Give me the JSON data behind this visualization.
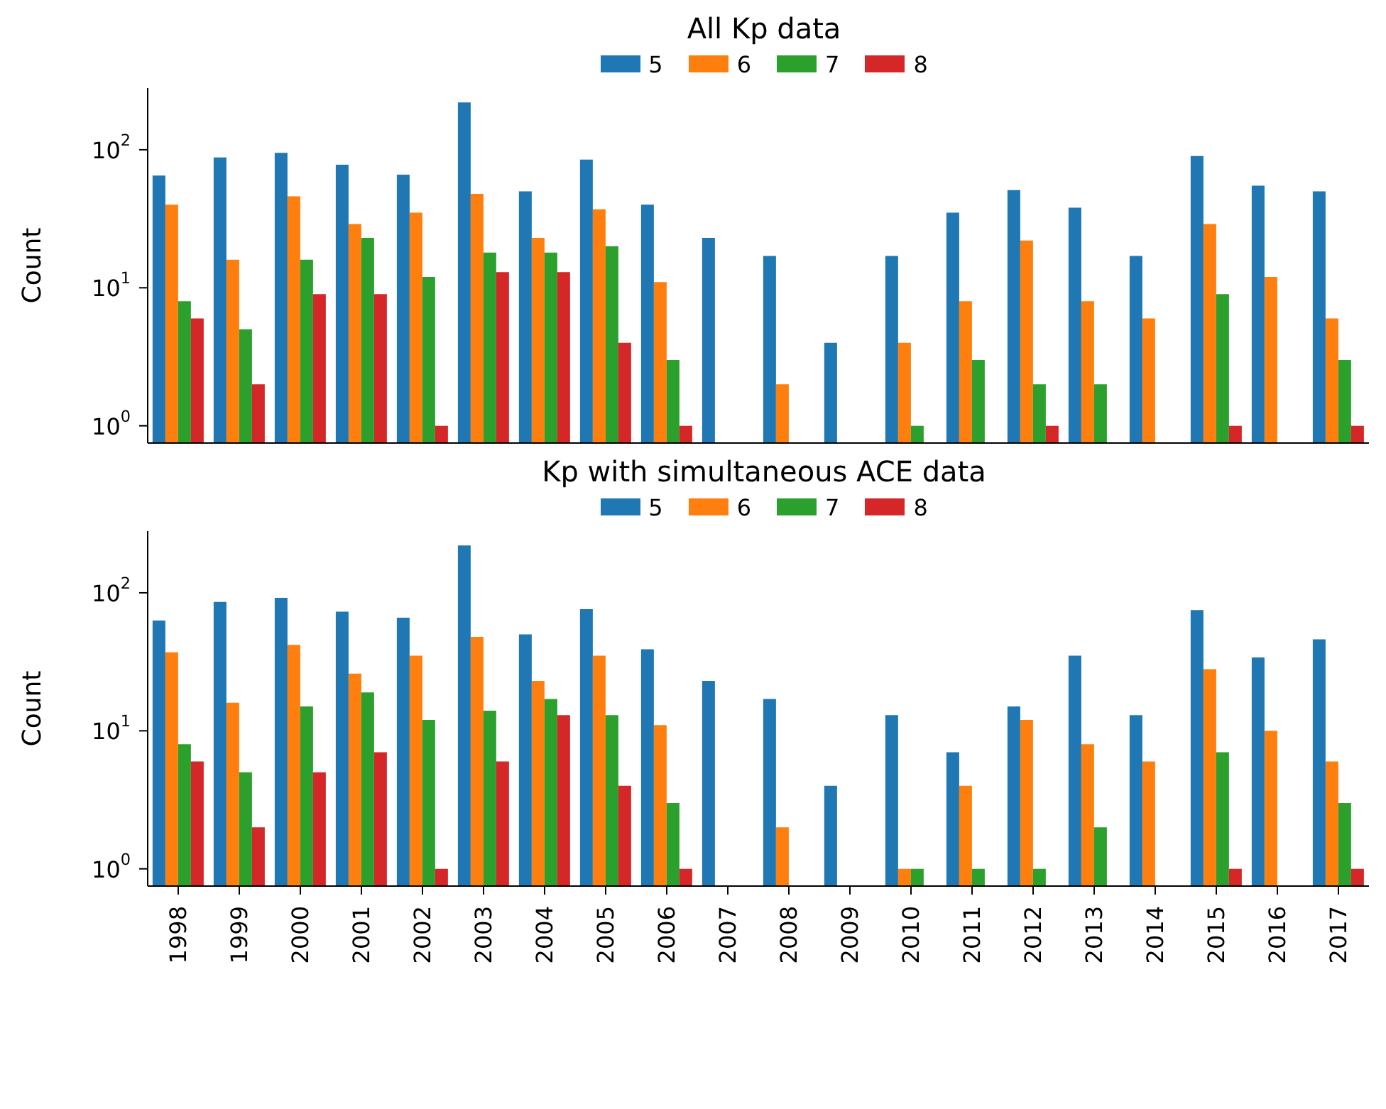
{
  "chart_data": [
    {
      "type": "bar",
      "title": "All Kp data",
      "ylabel": "Count",
      "log": "y",
      "legend": "top",
      "tick_labels": "y",
      "ylim": [
        0.75,
        280
      ],
      "yticks": [
        {
          "value": 1,
          "label": "10$^{0}$"
        },
        {
          "value": 10,
          "label": "10$^{1}$"
        },
        {
          "value": 100,
          "label": "10$^{2}$"
        }
      ],
      "categories": [
        "1998",
        "1999",
        "2000",
        "2001",
        "2002",
        "2003",
        "2004",
        "2005",
        "2006",
        "2007",
        "2008",
        "2009",
        "2010",
        "2011",
        "2012",
        "2013",
        "2014",
        "2015",
        "2016",
        "2017"
      ],
      "series": [
        {
          "name": "5",
          "color": "#1f77b4",
          "values": [
            65,
            88,
            95,
            78,
            66,
            220,
            50,
            85,
            40,
            23,
            17,
            4,
            17,
            35,
            51,
            38,
            17,
            90,
            55,
            50
          ]
        },
        {
          "name": "6",
          "color": "#ff7f0e",
          "values": [
            40,
            16,
            46,
            29,
            35,
            48,
            23,
            37,
            11,
            null,
            2,
            null,
            4,
            8,
            22,
            8,
            6,
            29,
            12,
            6
          ]
        },
        {
          "name": "7",
          "color": "#2ca02c",
          "values": [
            8,
            5,
            16,
            23,
            12,
            18,
            18,
            20,
            3,
            null,
            null,
            null,
            1,
            3,
            2,
            2,
            null,
            9,
            null,
            3
          ]
        },
        {
          "name": "8",
          "color": "#d62728",
          "values": [
            6,
            2,
            9,
            9,
            1,
            13,
            13,
            4,
            1,
            null,
            null,
            null,
            null,
            null,
            1,
            null,
            null,
            1,
            null,
            1
          ]
        }
      ]
    },
    {
      "type": "bar",
      "title": "Kp with simultaneous ACE data",
      "ylabel": "Count",
      "log": "y",
      "legend": "top",
      "ylim": [
        0.75,
        280
      ],
      "yticks": [
        {
          "value": 1,
          "label": "10$^{0}$"
        },
        {
          "value": 10,
          "label": "10$^{1}$"
        },
        {
          "value": 100,
          "label": "10$^{2}$"
        }
      ],
      "categories": [
        "1998",
        "1999",
        "2000",
        "2001",
        "2002",
        "2003",
        "2004",
        "2005",
        "2006",
        "2007",
        "2008",
        "2009",
        "2010",
        "2011",
        "2012",
        "2013",
        "2014",
        "2015",
        "2016",
        "2017"
      ],
      "series": [
        {
          "name": "5",
          "color": "#1f77b4",
          "values": [
            63,
            86,
            92,
            73,
            66,
            220,
            50,
            76,
            39,
            23,
            17,
            4,
            13,
            7,
            15,
            35,
            13,
            75,
            34,
            46
          ]
        },
        {
          "name": "6",
          "color": "#ff7f0e",
          "values": [
            37,
            16,
            42,
            26,
            35,
            48,
            23,
            35,
            11,
            null,
            2,
            null,
            1,
            4,
            12,
            8,
            6,
            28,
            10,
            6
          ]
        },
        {
          "name": "7",
          "color": "#2ca02c",
          "values": [
            8,
            5,
            15,
            19,
            12,
            14,
            17,
            13,
            3,
            null,
            null,
            null,
            1,
            1,
            1,
            2,
            null,
            7,
            null,
            3
          ]
        },
        {
          "name": "8",
          "color": "#d62728",
          "values": [
            6,
            2,
            5,
            7,
            1,
            6,
            13,
            4,
            1,
            null,
            null,
            null,
            null,
            null,
            null,
            null,
            null,
            1,
            null,
            1
          ]
        }
      ]
    }
  ]
}
